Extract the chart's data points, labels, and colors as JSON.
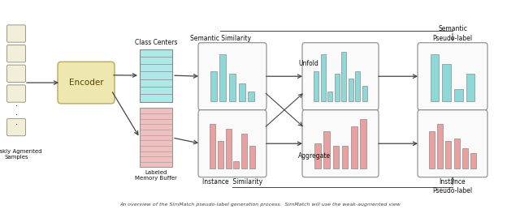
{
  "fig_width": 6.4,
  "fig_height": 2.58,
  "dpi": 100,
  "bg_color": "#ffffff",
  "cyan_color": "#8ed8d8",
  "cyan_fill": "#aee8e8",
  "pink_color": "#e8a0a0",
  "pink_fill": "#f0bfbf",
  "yellow_color": "#eee8b0",
  "yellow_border": "#b8a860",
  "text_color": "#111111",
  "arrow_color": "#444444",
  "caption": "An overview of the SimMatch pseudo-label generation process.  SimMatch will use the weak-augmented view",
  "label_weakly": "Weakly Agmented\nSamples",
  "label_class_centers": "Class Centers",
  "label_encoder": "Encoder",
  "label_labeled_memory": "Labeled\nMemory Buffer",
  "label_semantic_sim": "Semantic Similarity",
  "label_instance_sim": "Instance  Similarity",
  "label_unfold": "Unfold",
  "label_aggregate": "Aggregate",
  "label_semantic_pseudo": "Semantic\nPseudo-label",
  "label_instance_pseudo": "Instance\nPseudo-label",
  "cyan_bars_sem": [
    0.6,
    0.95,
    0.55,
    0.35,
    0.2
  ],
  "cyan_bars_unfold": [
    0.6,
    0.95,
    0.2,
    0.55,
    1.0,
    0.45,
    0.6,
    0.3
  ],
  "cyan_bars_pseudo": [
    0.95,
    0.75,
    0.25,
    0.55
  ],
  "pink_bars_inst": [
    0.9,
    0.55,
    0.8,
    0.15,
    0.7,
    0.45
  ],
  "pink_bars_agg": [
    0.5,
    0.75,
    0.45,
    0.45,
    0.85,
    1.0
  ],
  "pink_bars_pseudo": [
    0.75,
    0.9,
    0.55,
    0.6,
    0.4,
    0.3
  ]
}
